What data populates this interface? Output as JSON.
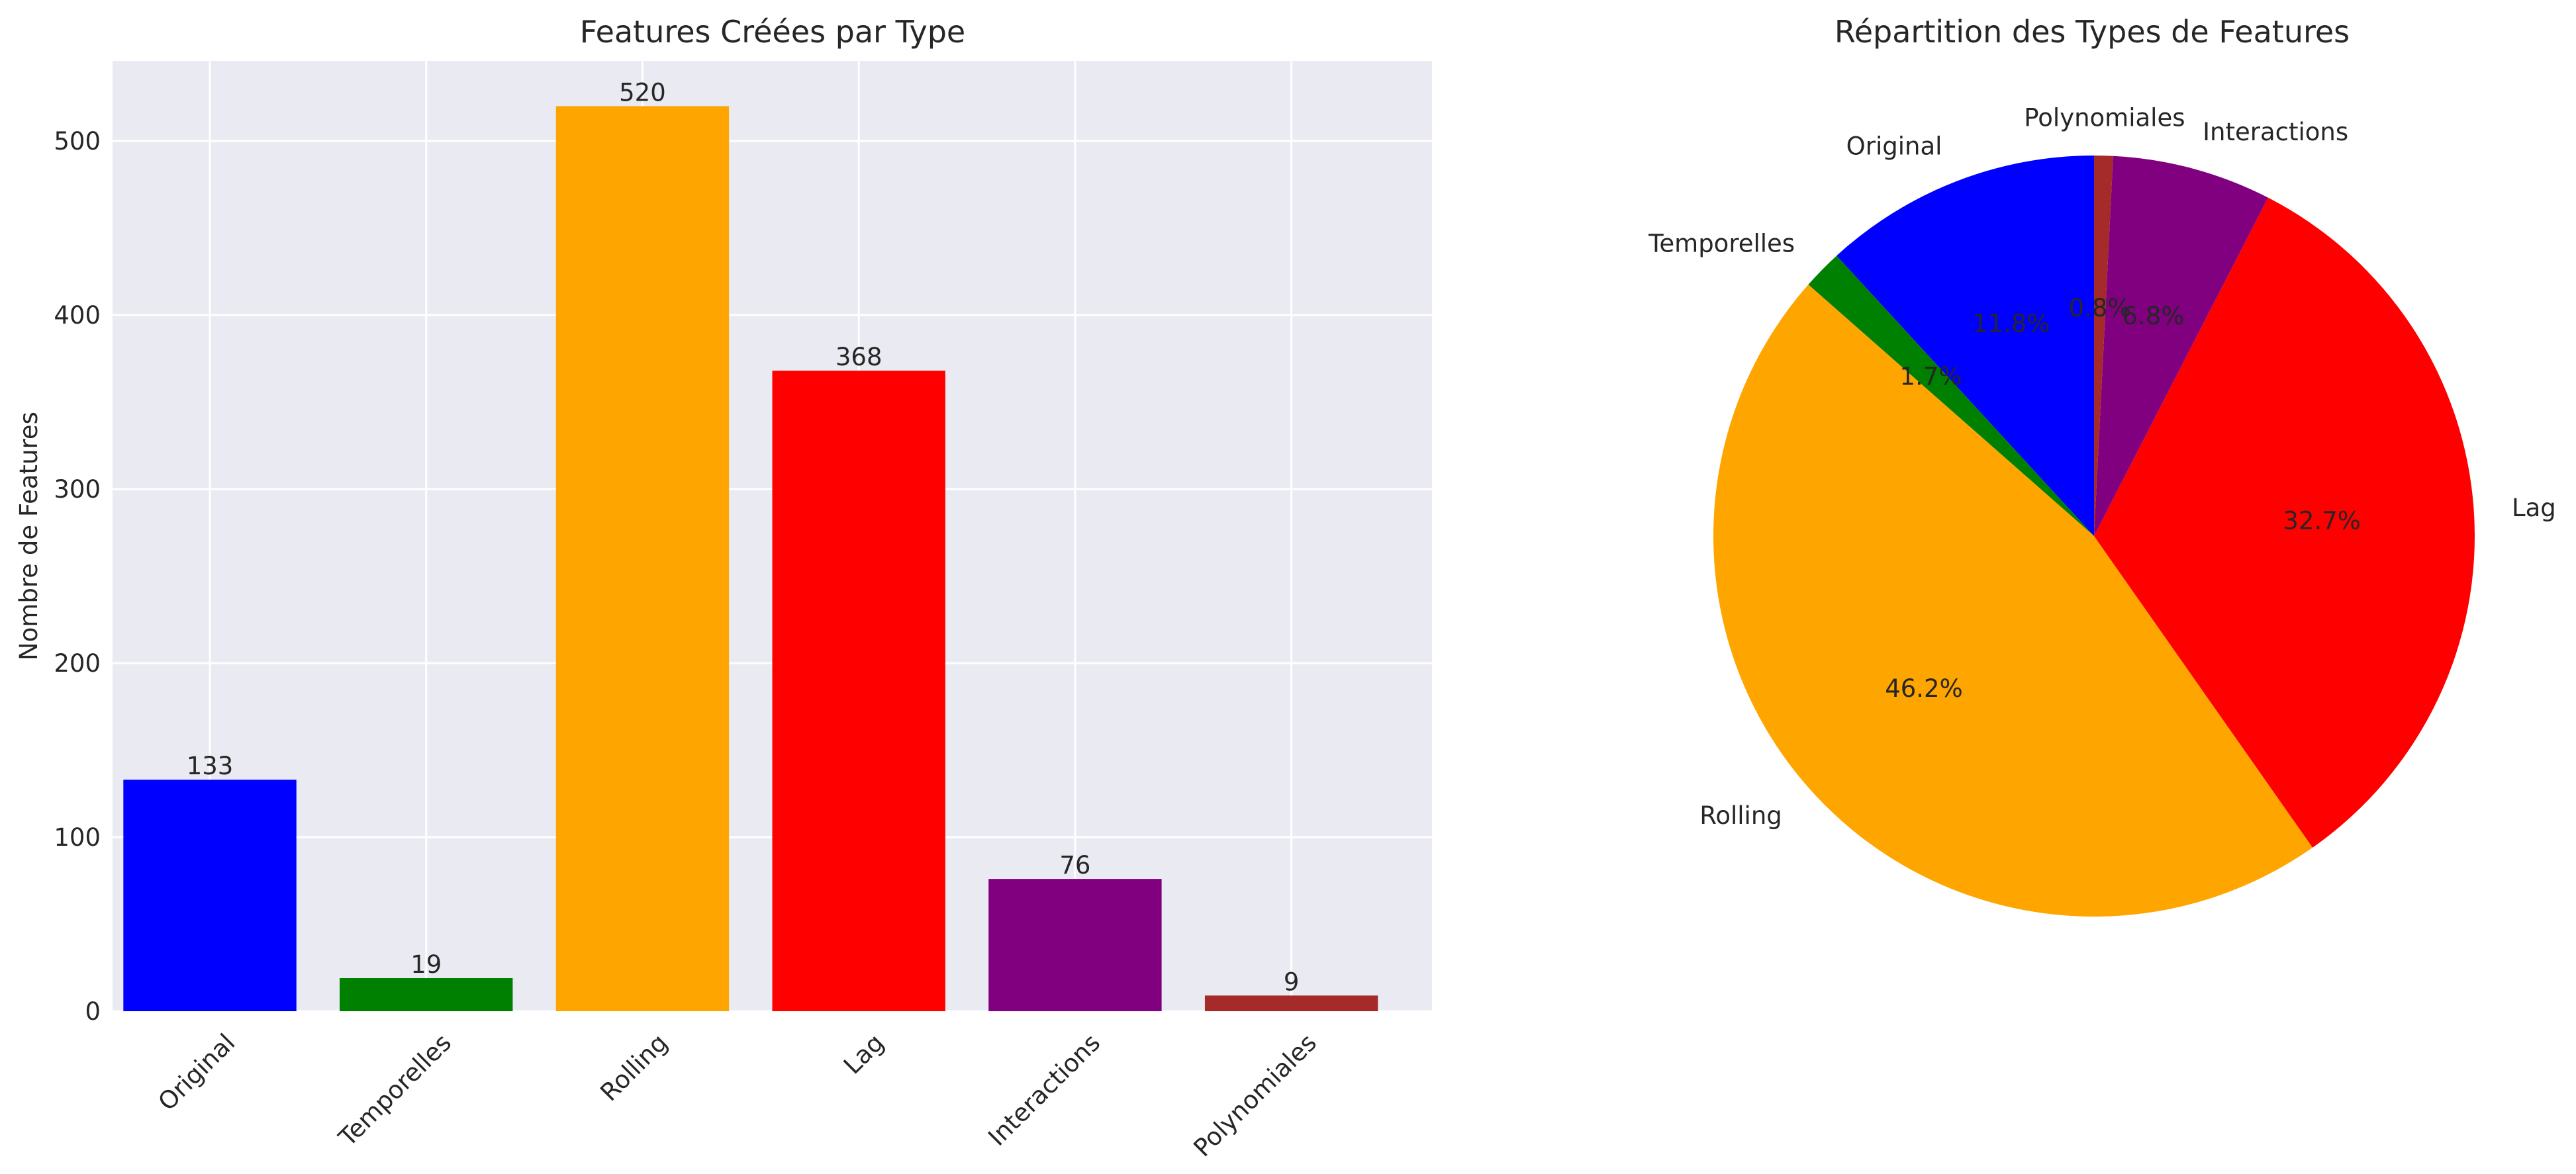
{
  "chart_data": [
    {
      "type": "bar",
      "title": "Features Créées par Type",
      "xlabel": "",
      "ylabel": "Nombre de Features",
      "categories": [
        "Original",
        "Temporelles",
        "Rolling",
        "Lag",
        "Interactions",
        "Polynomiales"
      ],
      "values": [
        133,
        19,
        520,
        368,
        76,
        9
      ],
      "value_labels": [
        "133",
        "19",
        "520",
        "368",
        "76",
        "9"
      ],
      "colors": [
        "#0000ff",
        "#008000",
        "#ffa500",
        "#ff0000",
        "#800080",
        "#a52a2a"
      ],
      "ylim": [
        0,
        546
      ],
      "yticks": [
        0,
        100,
        200,
        300,
        400,
        500
      ],
      "ytick_labels": [
        "0",
        "100",
        "200",
        "300",
        "400",
        "500"
      ],
      "grid": true,
      "background": "#eaeaf2"
    },
    {
      "type": "pie",
      "title": "Répartition des Types de Features",
      "labels": [
        "Original",
        "Temporelles",
        "Rolling",
        "Lag",
        "Interactions",
        "Polynomiales"
      ],
      "values": [
        133,
        19,
        520,
        368,
        76,
        9
      ],
      "percent_labels": [
        "11.8%",
        "1.7%",
        "46.2%",
        "32.7%",
        "6.8%",
        "0.8%"
      ],
      "colors": [
        "#0000ff",
        "#008000",
        "#ffa500",
        "#ff0000",
        "#800080",
        "#a52a2a"
      ],
      "start_angle": 90,
      "direction": "counterclockwise"
    }
  ]
}
